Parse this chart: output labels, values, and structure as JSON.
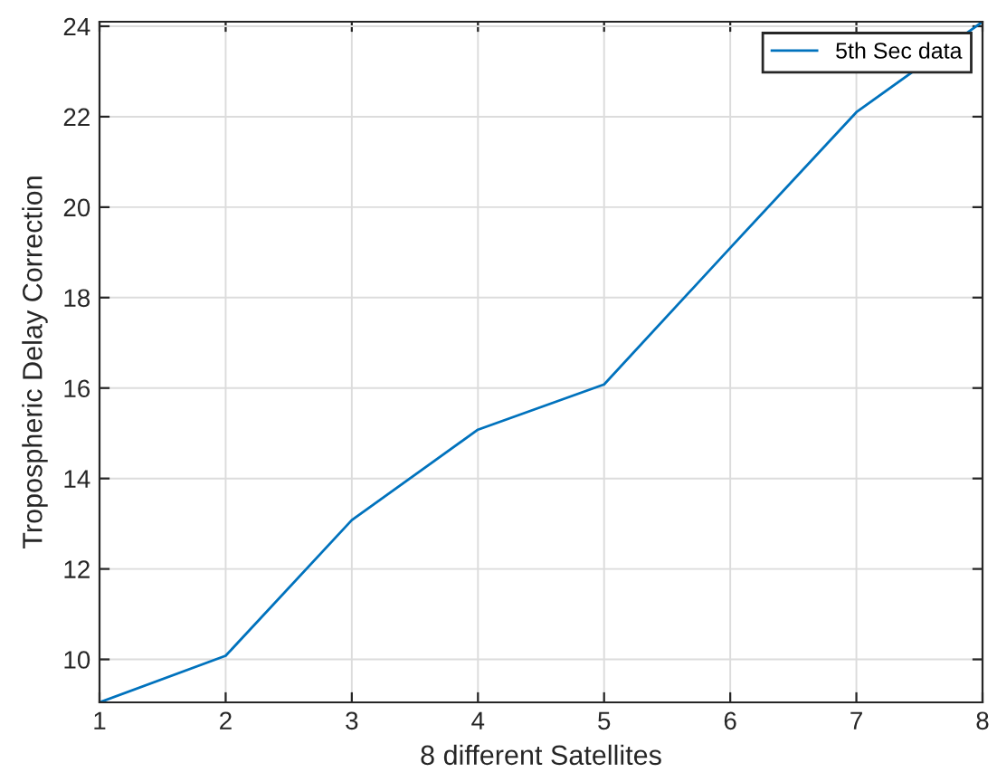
{
  "chart_data": {
    "type": "line",
    "xlabel": "8 different Satellites",
    "ylabel": "Tropospheric Delay Correction",
    "x": [
      1,
      2,
      3,
      4,
      5,
      6,
      7,
      8
    ],
    "series": [
      {
        "name": "5th Sec data",
        "color": "#0072bd",
        "values": [
          9.05,
          10.08,
          13.08,
          15.08,
          16.08,
          19.1,
          22.1,
          24.1
        ]
      }
    ],
    "xlim": [
      1,
      8
    ],
    "ylim": [
      9.05,
      24.1
    ],
    "xticks": [
      1,
      2,
      3,
      4,
      5,
      6,
      7,
      8
    ],
    "yticks": [
      10,
      12,
      14,
      16,
      18,
      20,
      22,
      24
    ],
    "grid": true,
    "legend": "top right",
    "marker": "none",
    "line_style": "solid"
  }
}
